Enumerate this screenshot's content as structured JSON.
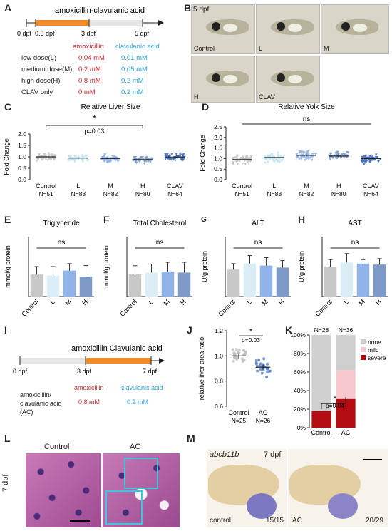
{
  "panel_labels": {
    "a": "A",
    "b": "B",
    "c": "C",
    "d": "D",
    "e": "E",
    "f": "F",
    "g": "G",
    "h": "H",
    "i": "I",
    "j": "J",
    "k": "K",
    "l": "L",
    "m": "M"
  },
  "panelA": {
    "title": "amoxicillin-clavulanic acid",
    "ticks": [
      "0 dpf",
      "0.5 dpf",
      "3 dpf",
      "5 dpf"
    ],
    "col_amox": "amoxicillin",
    "col_clav": "clavulanic acid",
    "rows": [
      {
        "label": "low dose(L)",
        "amox": "0.04 mM",
        "clav": "0.01 mM"
      },
      {
        "label": "medium dose(M)",
        "amox": "0.2 mM",
        "clav": "0.05 mM"
      },
      {
        "label": "high dose(H)",
        "amox": "0.8 mM",
        "clav": "0.2 mM"
      },
      {
        "label": "CLAV only",
        "amox": "0 mM",
        "clav": "0.2 mM"
      }
    ],
    "colors": {
      "amox": "#c62828",
      "clav": "#29a3d6",
      "bar": "#f28c28"
    }
  },
  "panelB": {
    "stage": "5 dpf",
    "images": [
      "Control",
      "L",
      "M",
      "H",
      "CLAV"
    ]
  },
  "panelC": {
    "chart_data": {
      "type": "scatter",
      "title": "Relative Liver Size",
      "ylabel": "Fold Change",
      "categories": [
        "Control",
        "L",
        "M",
        "H",
        "CLAV"
      ],
      "n_labels": [
        "N=51",
        "N=83",
        "N=82",
        "N=80",
        "N=64"
      ],
      "means": [
        1.0,
        0.95,
        0.93,
        0.88,
        0.99
      ],
      "ylim": [
        0.0,
        2.0
      ],
      "yticks": [
        "0.0",
        "0.5",
        "1.0",
        "1.5",
        "2.0"
      ],
      "sig": "*",
      "pvalue": "p=0.03"
    }
  },
  "panelD": {
    "chart_data": {
      "type": "scatter",
      "title": "Relative Yolk Size",
      "ylabel": "Fold Change",
      "categories": [
        "Control",
        "L",
        "M",
        "H",
        "CLAV"
      ],
      "n_labels": [
        "N=51",
        "N=83",
        "N=82",
        "N=80",
        "N=64"
      ],
      "means": [
        0.95,
        1.05,
        1.15,
        1.12,
        1.0
      ],
      "ylim": [
        0.0,
        2.5
      ],
      "yticks": [
        "0.0",
        "0.5",
        "1.0",
        "1.5",
        "2.0",
        "2.5"
      ],
      "sig": "ns"
    }
  },
  "panelE": {
    "chart_data": {
      "type": "bar",
      "title": "Triglyceride",
      "ylabel": "mmol/g protein",
      "categories": [
        "Control",
        "L",
        "M",
        "H"
      ],
      "values": [
        0.11,
        0.105,
        0.13,
        0.1
      ],
      "errors": [
        0.04,
        0.045,
        0.035,
        0.055
      ],
      "ylim": [
        0,
        0.3
      ],
      "sig": "ns"
    }
  },
  "panelF": {
    "chart_data": {
      "type": "bar",
      "title": "Total Cholesterol",
      "ylabel": "mmol/g protein",
      "categories": [
        "Control",
        "L",
        "M",
        "H"
      ],
      "values": [
        0.13,
        0.14,
        0.145,
        0.14
      ],
      "errors": [
        0.05,
        0.05,
        0.055,
        0.06
      ],
      "ylim": [
        0,
        0.35
      ],
      "sig": "ns"
    }
  },
  "panelG": {
    "chart_data": {
      "type": "bar",
      "title": "ALT",
      "ylabel": "U/g protein",
      "categories": [
        "Control",
        "L",
        "M",
        "H"
      ],
      "values": [
        27,
        33,
        31,
        29
      ],
      "errors": [
        6,
        8,
        8,
        7
      ],
      "ylim": [
        0,
        60
      ],
      "sig": "ns"
    }
  },
  "panelH": {
    "chart_data": {
      "type": "bar",
      "title": "AST",
      "ylabel": "U/g protein",
      "categories": [
        "Control",
        "L",
        "M",
        "H"
      ],
      "values": [
        30,
        34,
        33,
        32
      ],
      "errors": [
        7,
        9,
        4,
        6
      ],
      "ylim": [
        0,
        60
      ],
      "sig": "ns"
    }
  },
  "bar_colors": [
    "#c8c8c8",
    "#dbeef5",
    "#8fb3e8",
    "#7d9bc6"
  ],
  "panelI": {
    "title": "amoxicillin Clavulanic acid",
    "ticks": [
      "0 dpf",
      "3 dpf",
      "7 dpf"
    ],
    "col_amox": "amoxicillin",
    "col_clav": "clavulanic acid",
    "row_label": "amoxicillin/ clavulanic acid (AC)",
    "amox": "0.8 mM",
    "clav": "0.2 mM"
  },
  "panelJ": {
    "chart_data": {
      "type": "scatter",
      "ylabel": "relative liver area ratio",
      "categories": [
        "Control",
        "AC"
      ],
      "n_labels": [
        "N=25",
        "N=26"
      ],
      "means": [
        1.0,
        0.91
      ],
      "ylim": [
        0.6,
        1.2
      ],
      "yticks": [
        "0.6",
        "0.8",
        "1.0",
        "1.2"
      ],
      "sig": "*",
      "pvalue": "p=0.03"
    }
  },
  "panelK": {
    "chart_data": {
      "type": "bar",
      "stacked": true,
      "categories": [
        "Control",
        "AC"
      ],
      "n_labels": [
        "N=28",
        "N=36"
      ],
      "series": [
        {
          "name": "severe",
          "values": [
            18,
            31
          ]
        },
        {
          "name": "mild",
          "values": [
            0,
            31
          ]
        },
        {
          "name": "none",
          "values": [
            82,
            38
          ]
        }
      ],
      "yticks": [
        "0%",
        "20%",
        "40%",
        "60%",
        "80%",
        "100%"
      ],
      "sig": "*",
      "pvalue": "p=0.04"
    },
    "colors": {
      "none": "#cfcfcf",
      "mild": "#f7c9cf",
      "severe": "#b30c12"
    }
  },
  "panelL": {
    "stage": "7 dpf",
    "left": "Control",
    "right": "AC"
  },
  "panelM": {
    "gene": "abcb11b",
    "stage": "7 dpf",
    "left_cap": "control",
    "left_frac": "15/15",
    "right_cap": "AC",
    "right_frac": "20/29"
  }
}
